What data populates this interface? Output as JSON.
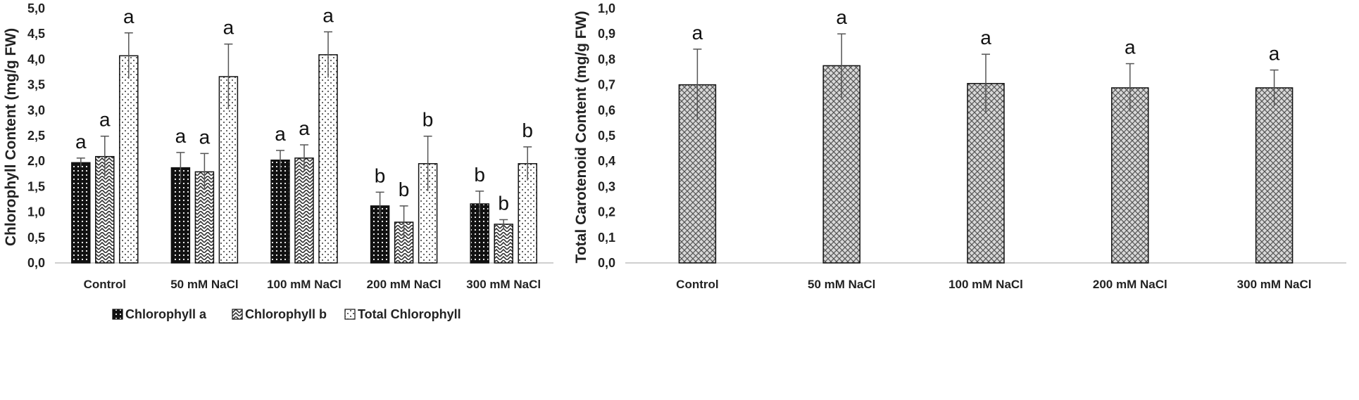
{
  "chart_data": [
    {
      "type": "bar",
      "ylabel": "Chlorophyll Content (mg/g FW)",
      "xlabel": "",
      "ylim": [
        0,
        5
      ],
      "yticks": [
        "0,0",
        "0,5",
        "1,0",
        "1,5",
        "2,0",
        "2,5",
        "3,0",
        "3,5",
        "4,0",
        "4,5",
        "5,0"
      ],
      "categories": [
        "Control",
        "50 mM NaCl",
        "100 mM NaCl",
        "200 mM NaCl",
        "300 mM NaCl"
      ],
      "legend_position": "bottom",
      "series": [
        {
          "name": "Chlorophyll a",
          "pattern": "dots-dark",
          "values": [
            1.97,
            1.87,
            2.02,
            1.12,
            1.16
          ],
          "errors": [
            0.09,
            0.3,
            0.19,
            0.27,
            0.25
          ],
          "letters": [
            "a",
            "a",
            "a",
            "b",
            "b"
          ]
        },
        {
          "name": "Chlorophyll b",
          "pattern": "zigzag",
          "values": [
            2.09,
            1.79,
            2.06,
            0.8,
            0.76
          ],
          "errors": [
            0.4,
            0.36,
            0.26,
            0.32,
            0.09
          ],
          "letters": [
            "a",
            "a",
            "a",
            "b",
            "b"
          ]
        },
        {
          "name": "Total Chlorophyll",
          "pattern": "dots-light",
          "values": [
            4.07,
            3.66,
            4.09,
            1.95,
            1.95
          ],
          "errors": [
            0.45,
            0.64,
            0.45,
            0.54,
            0.33
          ],
          "letters": [
            "a",
            "a",
            "a",
            "b",
            "b"
          ]
        }
      ]
    },
    {
      "type": "bar",
      "ylabel": "Total Carotenoid Content (mg/g FW)",
      "xlabel": "",
      "ylim": [
        0,
        1
      ],
      "yticks": [
        "0,0",
        "0,1",
        "0,2",
        "0,3",
        "0,4",
        "0,5",
        "0,6",
        "0,7",
        "0,8",
        "0,9",
        "1,0"
      ],
      "categories": [
        "Control",
        "50 mM NaCl",
        "100 mM NaCl",
        "200 mM NaCl",
        "300 mM NaCl"
      ],
      "series": [
        {
          "name": "Total Carotenoid",
          "pattern": "crosshatch",
          "values": [
            0.7,
            0.775,
            0.705,
            0.688,
            0.688
          ],
          "errors": [
            0.14,
            0.125,
            0.115,
            0.095,
            0.07
          ],
          "letters": [
            "a",
            "a",
            "a",
            "a",
            "a"
          ]
        }
      ]
    }
  ]
}
